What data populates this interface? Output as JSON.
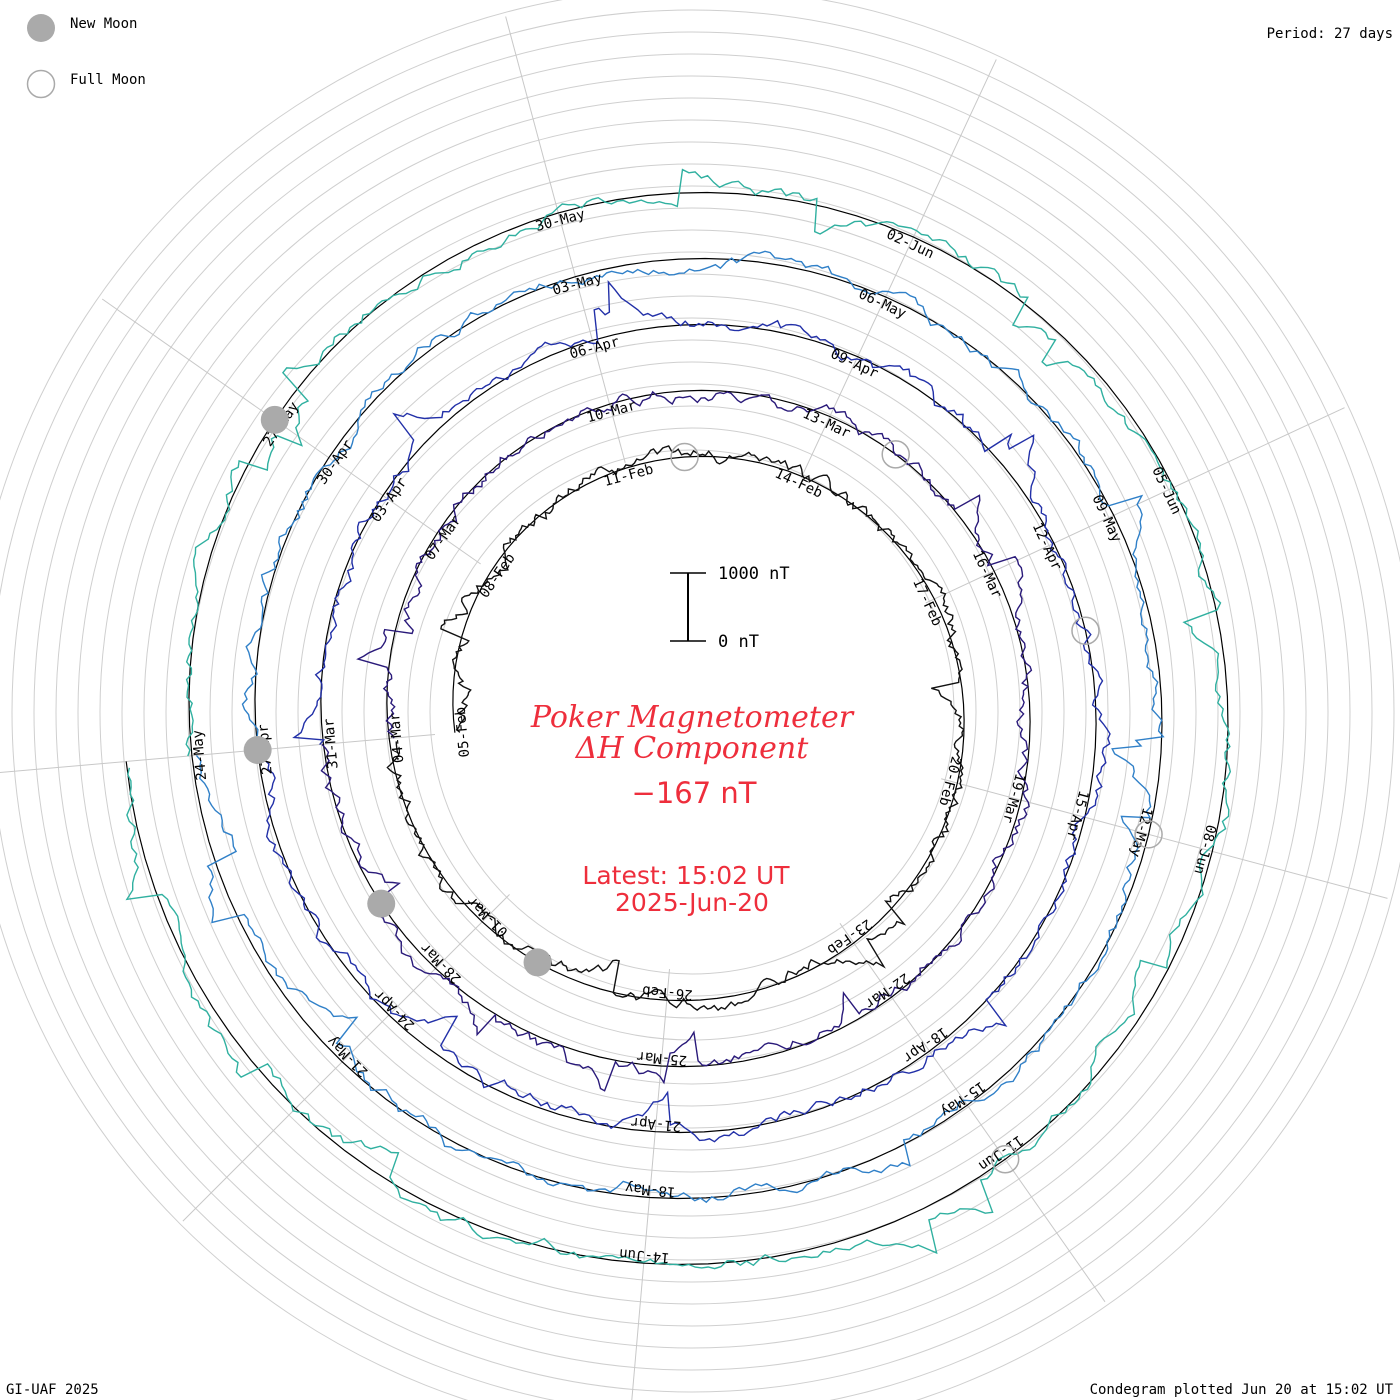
{
  "legend": {
    "new_moon": "New Moon",
    "full_moon": "Full Moon",
    "period": "Period: 27 days"
  },
  "footer": {
    "left": "GI-UAF 2025",
    "right": "Condegram plotted Jun 20 at 15:02 UT"
  },
  "center": {
    "title_line1": "Poker Magnetometer",
    "title_line2": "ΔH Component",
    "value": "−167 nT",
    "latest_line1": "Latest: 15:02 UT",
    "latest_line2": "2025-Jun-20"
  },
  "scale_bar": {
    "top_label": "1000 nT",
    "bottom_label": "0 nT"
  },
  "colors": {
    "title": "#ee2e3c",
    "grid": "#c8c8c8",
    "moon": "#aaaaaa"
  },
  "chart_data": {
    "type": "line",
    "layout": "condegram-spiral",
    "period_days": 27,
    "start_date": "2025-Feb-05",
    "end_date": "2025-Jun-20",
    "component": "ΔH",
    "units": "nT",
    "latest_value": -167,
    "scale_bar_nT": [
      0,
      1000
    ],
    "date_labels": [
      "05-Feb",
      "08-Feb",
      "11-Feb",
      "14-Feb",
      "17-Feb",
      "20-Feb",
      "23-Feb",
      "26-Feb",
      "01-Mar",
      "04-Mar",
      "07-Mar",
      "10-Mar",
      "13-Mar",
      "16-Mar",
      "19-Mar",
      "22-Mar",
      "25-Mar",
      "28-Mar",
      "31-Mar",
      "03-Apr",
      "06-Apr",
      "09-Apr",
      "12-Apr",
      "15-Apr",
      "18-Apr",
      "21-Apr",
      "24-Apr",
      "27-Apr",
      "30-Apr",
      "03-May",
      "06-May",
      "09-May",
      "12-May",
      "15-May",
      "18-May",
      "21-May",
      "24-May",
      "27-May",
      "30-May",
      "02-Jun",
      "05-Jun",
      "08-Jun",
      "11-Jun",
      "14-Jun"
    ],
    "series": [
      {
        "color": "#111111"
      },
      {
        "color": "#2a1a7a"
      },
      {
        "color": "#2230a8"
      },
      {
        "color": "#3080c8"
      },
      {
        "color": "#30b0a0"
      },
      {
        "color": "#40b040"
      },
      {
        "color": "#90c030"
      },
      {
        "color": "#c0b020"
      },
      {
        "color": "#b88a10"
      },
      {
        "color": "#b05010"
      },
      {
        "color": "#a81a10"
      }
    ],
    "moon_phases": {
      "new_moon": [
        "2025-Feb-28",
        "2025-Mar-29",
        "2025-Apr-27",
        "2025-May-27"
      ],
      "full_moon": [
        "2025-Feb-12",
        "2025-Mar-14",
        "2025-Apr-13",
        "2025-May-12",
        "2025-Jun-11"
      ]
    }
  }
}
